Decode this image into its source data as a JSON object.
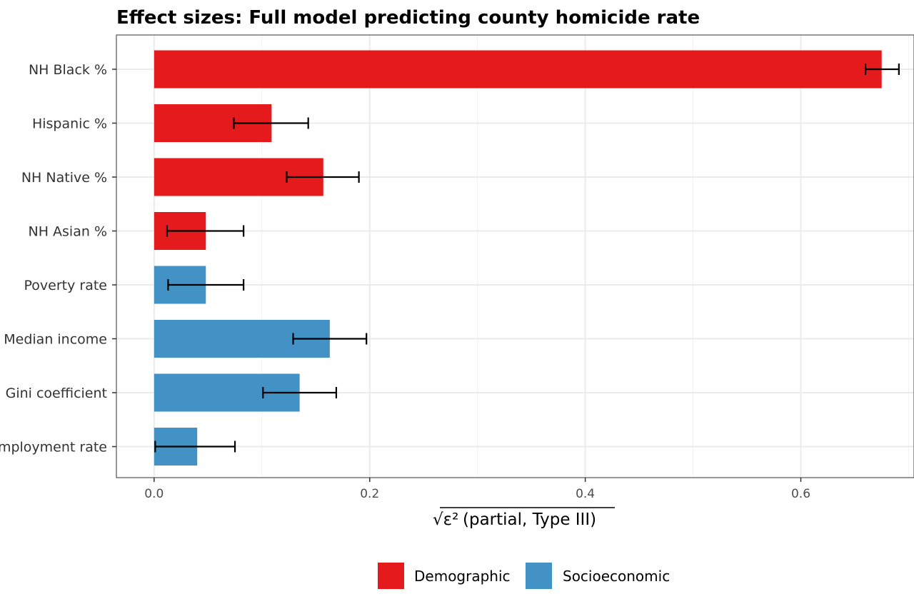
{
  "chart_data": {
    "type": "bar",
    "orientation": "horizontal",
    "title": "Effect sizes: Full model predicting county homicide rate",
    "xlabel": "(partial, Type III)",
    "xlabel_symbol": "√ε²",
    "ylabel": "",
    "xlim": [
      -0.035,
      0.705
    ],
    "xticks": [
      0.0,
      0.2,
      0.4,
      0.6
    ],
    "xtick_labels": [
      "0.0",
      "0.2",
      "0.4",
      "0.6"
    ],
    "grid": true,
    "legend_position": "bottom",
    "categories": [
      "NH Black %",
      "Hispanic %",
      "NH Native %",
      "NH Asian %",
      "Poverty rate",
      "Median income",
      "Gini coefficient",
      "Unemployment rate"
    ],
    "values": [
      0.675,
      0.109,
      0.157,
      0.048,
      0.048,
      0.163,
      0.135,
      0.04
    ],
    "ci_low": [
      0.66,
      0.074,
      0.123,
      0.012,
      0.013,
      0.129,
      0.101,
      0.001
    ],
    "ci_high": [
      0.691,
      0.143,
      0.19,
      0.083,
      0.083,
      0.197,
      0.169,
      0.075
    ],
    "groups": [
      "Demographic",
      "Demographic",
      "Demographic",
      "Demographic",
      "Socioeconomic",
      "Socioeconomic",
      "Socioeconomic",
      "Socioeconomic"
    ],
    "legend": [
      {
        "name": "Demographic",
        "color": "#e41a1c"
      },
      {
        "name": "Socioeconomic",
        "color": "#4292c6"
      }
    ]
  }
}
